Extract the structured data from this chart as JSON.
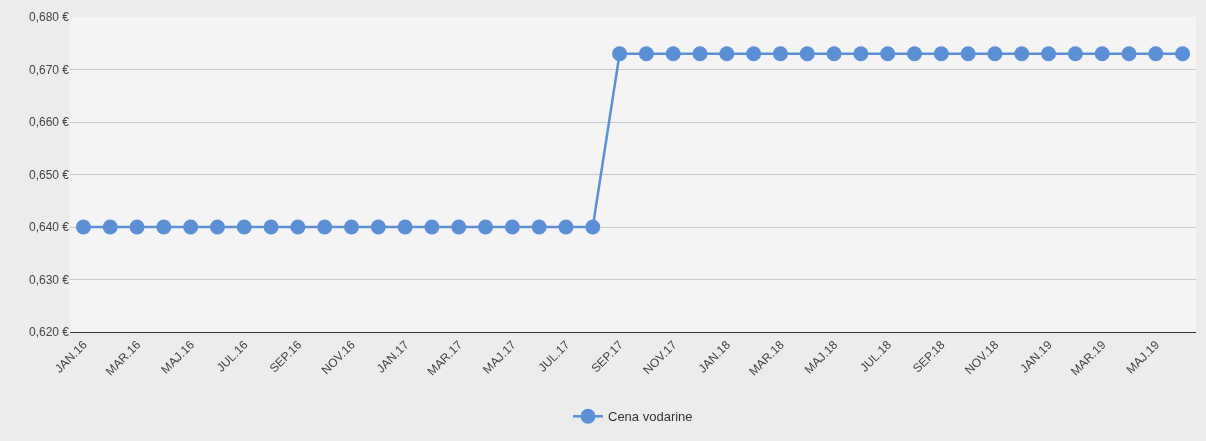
{
  "chart_data": {
    "type": "line",
    "categories": [
      "JAN.16",
      null,
      "MAR.16",
      null,
      "MAJ.16",
      null,
      "JUL.16",
      null,
      "SEP.16",
      null,
      "NOV.16",
      null,
      "JAN.17",
      null,
      "MAR.17",
      null,
      "MAJ.17",
      null,
      "JUL.17",
      null,
      "SEP.17",
      null,
      "NOV.17",
      null,
      "JAN.18",
      null,
      "MAR.18",
      null,
      "MAJ.18",
      null,
      "JUL.18",
      null,
      "SEP.18",
      null,
      "NOV.18",
      null,
      "JAN.19",
      null,
      "MAR.19",
      null,
      "MAJ.19",
      null
    ],
    "series": [
      {
        "name": "Cena vodarine",
        "color": "#5b8fd6",
        "values": [
          0.64,
          0.64,
          0.64,
          0.64,
          0.64,
          0.64,
          0.64,
          0.64,
          0.64,
          0.64,
          0.64,
          0.64,
          0.64,
          0.64,
          0.64,
          0.64,
          0.64,
          0.64,
          0.64,
          0.64,
          0.673,
          0.673,
          0.673,
          0.673,
          0.673,
          0.673,
          0.673,
          0.673,
          0.673,
          0.673,
          0.673,
          0.673,
          0.673,
          0.673,
          0.673,
          0.673,
          0.673,
          0.673,
          0.673,
          0.673,
          0.673,
          0.673
        ]
      }
    ],
    "ylim": [
      0.62,
      0.68
    ],
    "yticks": [
      {
        "value": 0.62,
        "label": "0,620 €"
      },
      {
        "value": 0.63,
        "label": "0,630 €"
      },
      {
        "value": 0.64,
        "label": "0,640 €"
      },
      {
        "value": 0.65,
        "label": "0,650 €"
      },
      {
        "value": 0.66,
        "label": "0,660 €"
      },
      {
        "value": 0.67,
        "label": "0,670 €"
      },
      {
        "value": 0.68,
        "label": "0,680 €"
      }
    ],
    "grid": "y",
    "legend": "bottom",
    "marker": "circle",
    "line_style": "solid"
  }
}
